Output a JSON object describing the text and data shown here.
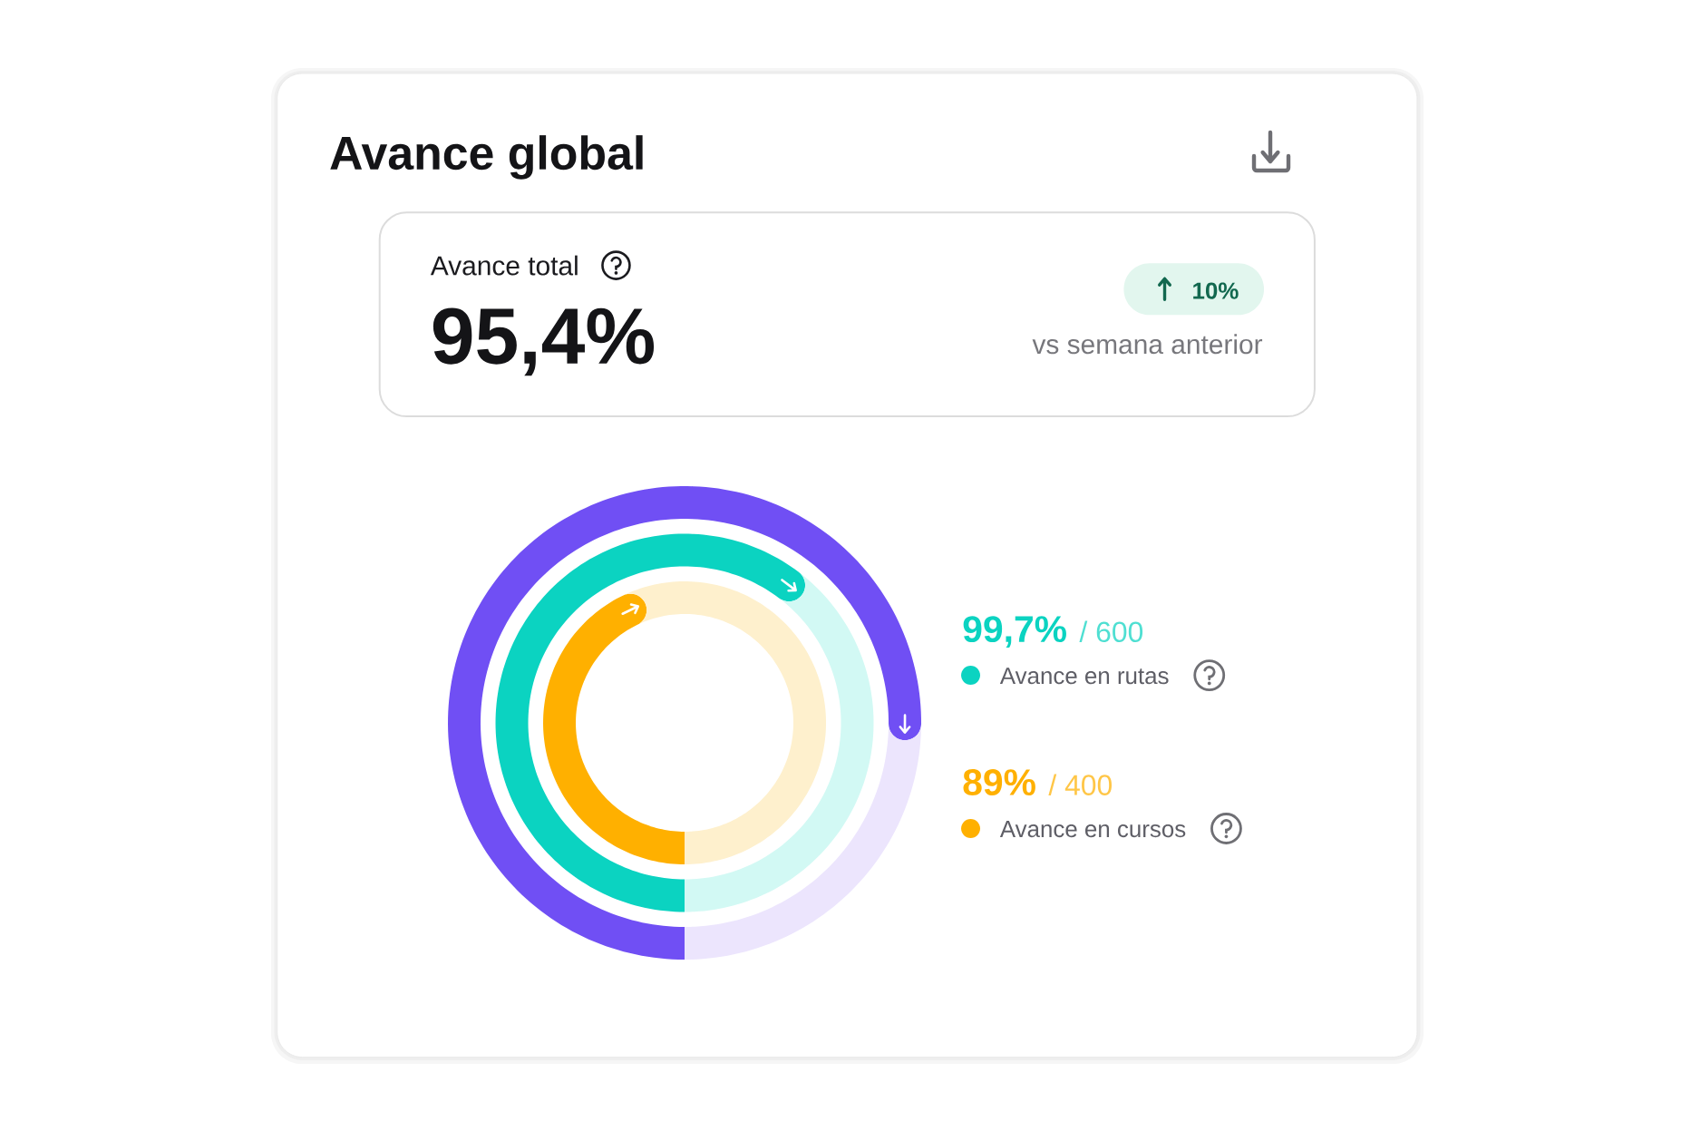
{
  "chart_data": [
    {
      "type": "other",
      "title": "Avance global",
      "annotations": [
        "Avance total",
        "95,4%",
        "10%",
        "vs semana anterior"
      ]
    },
    {
      "type": "donut",
      "categories": [
        null,
        null
      ],
      "series": [
        {
          "colors": [
            "#704ff4",
            "#ece5fd"
          ],
          "values": [
            76,
            24
          ]
        },
        {
          "name": "Avance en rutas",
          "colors": [
            "#0bd3c1",
            "#d2f9f4"
          ],
          "values": [
            61.5,
            38.5
          ]
        },
        {
          "name": "Avance en cursos",
          "colors": [
            "#ffb000",
            "#fef0cd"
          ],
          "values": [
            44.5,
            55.5
          ]
        }
      ],
      "legend": "right",
      "annotations": [
        "99,7%",
        "/ 600",
        "89%",
        "/ 400"
      ]
    }
  ]
}
